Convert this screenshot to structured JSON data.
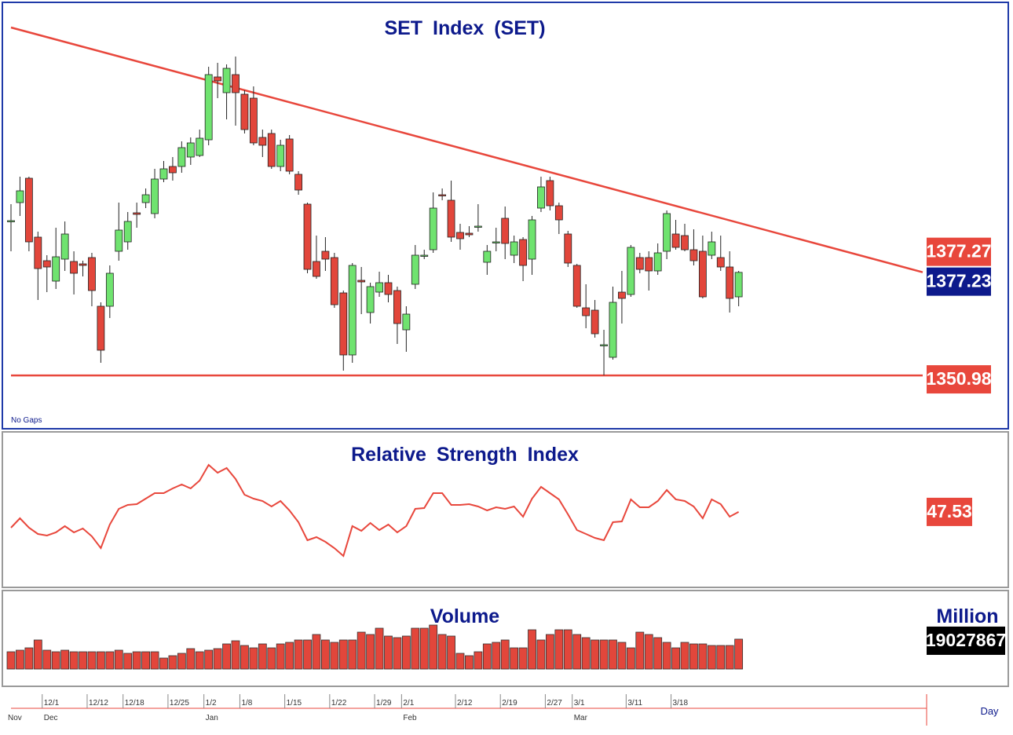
{
  "chart_data": [
    {
      "type": "candlestick",
      "title": "SET Index (SET)",
      "note": "No Gaps",
      "categories": [
        null,
        null,
        null,
        null,
        "12/1",
        null,
        null,
        null,
        null,
        "12/12",
        null,
        null,
        null,
        "12/18",
        null,
        null,
        null,
        null,
        "12/25",
        null,
        null,
        null,
        "1/2",
        null,
        null,
        null,
        "1/8",
        null,
        null,
        null,
        null,
        "1/15",
        null,
        null,
        null,
        null,
        "1/22",
        null,
        null,
        null,
        null,
        "1/29",
        null,
        null,
        "2/1",
        null,
        null,
        null,
        null,
        null,
        "2/12",
        null,
        null,
        null,
        null,
        "2/19",
        null,
        null,
        null,
        null,
        "2/27",
        null,
        null,
        "3/1",
        null,
        null,
        null,
        null,
        null,
        "3/11",
        null,
        null,
        null,
        null,
        "3/18",
        null,
        null,
        null,
        null,
        null,
        null,
        null
      ],
      "months": [
        "Nov",
        null,
        null,
        null,
        "Dec",
        null,
        null,
        null,
        null,
        null,
        null,
        null,
        null,
        null,
        null,
        null,
        null,
        null,
        null,
        null,
        null,
        null,
        "Jan",
        null,
        null,
        null,
        null,
        null,
        null,
        null,
        null,
        null,
        null,
        null,
        null,
        null,
        null,
        null,
        null,
        null,
        null,
        null,
        null,
        null,
        "Feb",
        null,
        null,
        null,
        null,
        null,
        null,
        null,
        null,
        null,
        null,
        null,
        null,
        null,
        null,
        null,
        null,
        null,
        null,
        "Mar",
        null,
        null,
        null,
        null,
        null,
        null,
        null,
        null,
        null,
        null,
        null,
        null,
        null,
        null,
        null,
        null,
        null,
        null
      ],
      "open": [
        1390.2,
        1395.0,
        1401.2,
        1386.2,
        1380.2,
        1375.0,
        1380.6,
        1380.0,
        1379.4,
        1381.0,
        1368.6,
        1368.6,
        1382.6,
        1385.0,
        1392.4,
        1395.0,
        1392.2,
        1401.0,
        1404.2,
        1404.2,
        1406.6,
        1407.0,
        1411.0,
        1427.0,
        1423.0,
        1427.6,
        1422.6,
        1421.6,
        1411.6,
        1412.6,
        1404.2,
        1411.2,
        1402.2,
        1394.6,
        1380.0,
        1382.6,
        1381.0,
        1372.0,
        1356.2,
        1375.2,
        1367.0,
        1372.2,
        1374.6,
        1372.6,
        1362.6,
        1374.2,
        1381.4,
        1383.0,
        1397.0,
        1395.6,
        1387.4,
        1387.2,
        1388.8,
        1379.8,
        1384.8,
        1391.0,
        1381.6,
        1385.6,
        1380.6,
        1393.6,
        1400.6,
        1394.2,
        1387.0,
        1379.0,
        1368.2,
        1367.6,
        1358.6,
        1355.6,
        1372.2,
        1371.6,
        1381.0,
        1381.0,
        1377.6,
        1382.6,
        1387.0,
        1386.6,
        1383.0,
        1382.6,
        1381.6,
        1381.0,
        1378.6,
        1371.0
      ],
      "high": [
        1394.6,
        1401.6,
        1401.6,
        1387.6,
        1381.6,
        1388.6,
        1390.2,
        1382.6,
        1380.2,
        1382.2,
        1369.6,
        1379.0,
        1395.0,
        1392.6,
        1395.0,
        1398.6,
        1403.6,
        1405.6,
        1406.6,
        1410.6,
        1411.6,
        1413.6,
        1429.6,
        1430.6,
        1430.2,
        1432.2,
        1423.6,
        1424.6,
        1413.6,
        1413.6,
        1411.0,
        1412.2,
        1403.0,
        1395.0,
        1386.6,
        1386.2,
        1382.2,
        1372.6,
        1379.6,
        1378.6,
        1374.6,
        1377.4,
        1376.6,
        1373.6,
        1368.6,
        1384.2,
        1383.0,
        1397.6,
        1398.6,
        1400.6,
        1389.6,
        1389.0,
        1394.6,
        1384.2,
        1388.6,
        1394.0,
        1386.6,
        1386.2,
        1391.6,
        1401.6,
        1401.6,
        1395.0,
        1387.8,
        1379.4,
        1374.2,
        1370.2,
        1362.6,
        1373.6,
        1377.6,
        1384.2,
        1382.2,
        1382.6,
        1384.6,
        1393.0,
        1390.6,
        1389.6,
        1388.2,
        1386.6,
        1387.6,
        1386.6,
        1382.6,
        1377.6
      ],
      "low": [
        1382.6,
        1391.6,
        1382.6,
        1370.2,
        1372.2,
        1373.0,
        1377.6,
        1371.6,
        1376.2,
        1368.6,
        1354.2,
        1365.6,
        1380.2,
        1383.0,
        1388.6,
        1393.6,
        1391.0,
        1400.2,
        1400.6,
        1402.6,
        1404.6,
        1406.6,
        1409.6,
        1421.6,
        1416.2,
        1414.6,
        1412.6,
        1409.6,
        1406.6,
        1403.6,
        1403.0,
        1402.2,
        1397.0,
        1377.0,
        1375.6,
        1377.6,
        1368.2,
        1352.2,
        1354.2,
        1366.6,
        1364.2,
        1371.0,
        1369.6,
        1359.0,
        1357.0,
        1373.0,
        1380.6,
        1382.2,
        1395.6,
        1385.0,
        1383.0,
        1386.2,
        1387.6,
        1376.6,
        1382.6,
        1380.6,
        1379.6,
        1375.0,
        1376.6,
        1392.6,
        1393.0,
        1387.0,
        1378.6,
        1368.2,
        1363.0,
        1360.6,
        1351.0,
        1355.0,
        1364.2,
        1371.0,
        1377.0,
        1372.6,
        1376.6,
        1380.6,
        1383.0,
        1382.6,
        1379.0,
        1370.6,
        1380.6,
        1377.6,
        1367.0,
        1368.6
      ],
      "close": [
        1390.4,
        1398.0,
        1385.0,
        1378.2,
        1378.6,
        1381.2,
        1387.0,
        1377.0,
        1379.0,
        1372.6,
        1357.4,
        1377.0,
        1388.0,
        1390.2,
        1392.0,
        1397.0,
        1401.0,
        1403.6,
        1402.6,
        1409.0,
        1410.2,
        1411.4,
        1427.6,
        1426.0,
        1429.2,
        1423.0,
        1413.6,
        1410.2,
        1409.6,
        1404.2,
        1409.6,
        1403.0,
        1398.2,
        1378.0,
        1376.2,
        1380.6,
        1369.0,
        1356.2,
        1379.0,
        1374.8,
        1373.6,
        1374.6,
        1371.6,
        1364.2,
        1366.6,
        1381.6,
        1381.6,
        1393.6,
        1396.8,
        1386.2,
        1385.8,
        1386.8,
        1389.0,
        1382.6,
        1385.0,
        1384.6,
        1385.0,
        1379.0,
        1390.6,
        1399.0,
        1394.2,
        1390.6,
        1379.6,
        1368.6,
        1366.2,
        1361.6,
        1358.8,
        1369.6,
        1370.6,
        1383.6,
        1378.0,
        1377.6,
        1382.2,
        1392.2,
        1383.6,
        1383.0,
        1380.2,
        1371.0,
        1385.0,
        1378.6,
        1370.6,
        1377.23
      ],
      "up_color": "#6fe36f",
      "down_color": "#e2463b",
      "ylim": [
        1338.6,
        1445.0
      ],
      "trendline": [
        1439.6,
        1377.27
      ],
      "trendline_color": "#e8473c",
      "support": 1350.98,
      "support_color": "#e8473c",
      "last_color": "#0d1a8c"
    },
    {
      "type": "line",
      "title": "Relative Strength Index",
      "color": "#e8473c",
      "ylim": [
        24.25,
        70.5
      ],
      "values": [
        42.5,
        45.5,
        42.5,
        40.5,
        40.0,
        41.0,
        43.0,
        41.0,
        42.25,
        39.75,
        36.0,
        43.5,
        48.5,
        49.75,
        50.0,
        51.75,
        53.5,
        53.5,
        55.0,
        56.25,
        55.0,
        57.5,
        62.5,
        60.0,
        61.5,
        58.0,
        53.0,
        51.75,
        51.0,
        49.25,
        51.0,
        48.0,
        44.25,
        38.5,
        39.5,
        38.0,
        36.0,
        33.5,
        43.0,
        41.5,
        44.0,
        41.75,
        43.5,
        41.0,
        43.0,
        48.5,
        48.75,
        53.5,
        53.5,
        49.75,
        49.75,
        50.0,
        49.25,
        48.0,
        49.0,
        48.5,
        49.25,
        46.0,
        51.75,
        55.5,
        53.5,
        51.5,
        46.75,
        41.75,
        40.5,
        39.25,
        38.5,
        44.25,
        44.5,
        51.5,
        49.0,
        49.0,
        51.0,
        54.5,
        51.5,
        51.0,
        49.25,
        45.5,
        51.5,
        50.0,
        46.0,
        47.53
      ]
    },
    {
      "type": "bar",
      "title": "Volume",
      "unit_label": "Million",
      "color": "#e2463b",
      "ylim": [
        0,
        46000000
      ],
      "values": [
        11000000,
        12000000,
        13500000,
        18500000,
        12000000,
        11000000,
        12000000,
        11000000,
        11000000,
        11000000,
        11000000,
        11000000,
        12000000,
        10000000,
        11000000,
        11000000,
        11000000,
        7000000,
        8500000,
        10000000,
        13000000,
        11000000,
        12000000,
        13000000,
        16000000,
        18000000,
        15000000,
        13500000,
        16000000,
        13500000,
        16000000,
        17000000,
        18500000,
        18500000,
        22000000,
        18500000,
        17000000,
        18500000,
        18500000,
        23500000,
        22000000,
        26000000,
        21000000,
        20000000,
        21000000,
        26000000,
        26000000,
        28000000,
        22000000,
        21000000,
        10000000,
        8500000,
        11000000,
        16000000,
        17000000,
        18500000,
        13500000,
        13500000,
        25000000,
        18500000,
        22000000,
        25000000,
        25000000,
        22000000,
        20000000,
        18500000,
        18500000,
        18500000,
        17000000,
        13500000,
        23500000,
        22000000,
        20000000,
        17000000,
        13500000,
        17000000,
        16000000,
        16000000,
        15000000,
        15000000,
        15000000,
        19027867
      ]
    }
  ],
  "x_axis_label": "Day"
}
